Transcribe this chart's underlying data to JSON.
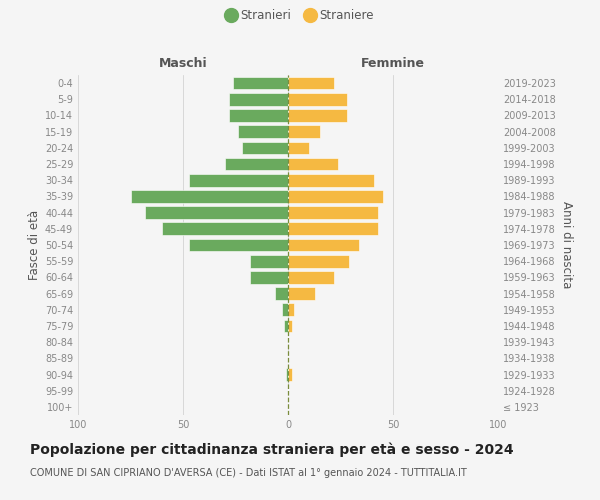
{
  "age_groups": [
    "100+",
    "95-99",
    "90-94",
    "85-89",
    "80-84",
    "75-79",
    "70-74",
    "65-69",
    "60-64",
    "55-59",
    "50-54",
    "45-49",
    "40-44",
    "35-39",
    "30-34",
    "25-29",
    "20-24",
    "15-19",
    "10-14",
    "5-9",
    "0-4"
  ],
  "birth_years": [
    "≤ 1923",
    "1924-1928",
    "1929-1933",
    "1934-1938",
    "1939-1943",
    "1944-1948",
    "1949-1953",
    "1954-1958",
    "1959-1963",
    "1964-1968",
    "1969-1973",
    "1974-1978",
    "1979-1983",
    "1984-1988",
    "1989-1993",
    "1994-1998",
    "1999-2003",
    "2004-2008",
    "2009-2013",
    "2014-2018",
    "2019-2023"
  ],
  "males": [
    0,
    0,
    1,
    0,
    0,
    2,
    3,
    6,
    18,
    18,
    47,
    60,
    68,
    75,
    47,
    30,
    22,
    24,
    28,
    28,
    26
  ],
  "females": [
    0,
    0,
    2,
    0,
    0,
    2,
    3,
    13,
    22,
    29,
    34,
    43,
    43,
    45,
    41,
    24,
    10,
    15,
    28,
    28,
    22
  ],
  "male_color": "#6aaa5e",
  "female_color": "#f5b942",
  "dashed_line_color": "#7a8c3c",
  "grid_color": "#cccccc",
  "background_color": "#f5f5f5",
  "title": "Popolazione per cittadinanza straniera per età e sesso - 2024",
  "subtitle": "COMUNE DI SAN CIPRIANO D'AVERSA (CE) - Dati ISTAT al 1° gennaio 2024 - TUTTITALIA.IT",
  "xlabel_left": "Maschi",
  "xlabel_right": "Femmine",
  "ylabel_left": "Fasce di età",
  "ylabel_right": "Anni di nascita",
  "legend_stranieri": "Stranieri",
  "legend_straniere": "Straniere",
  "xlim": 100,
  "title_fontsize": 10,
  "subtitle_fontsize": 7,
  "tick_fontsize": 7,
  "label_fontsize": 8.5,
  "header_fontsize": 9
}
